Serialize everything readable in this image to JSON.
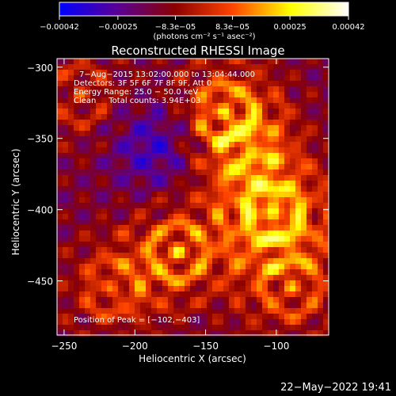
{
  "chart_data": {
    "type": "heatmap",
    "title": "Reconstructed RHESSI Image",
    "xlabel": "Heliocentric X (arcsec)",
    "ylabel": "Heliocentric Y (arcsec)",
    "xlim": [
      -255,
      -63
    ],
    "ylim": [
      -488,
      -294
    ],
    "x_ticks": [
      -250,
      -200,
      -150,
      -100
    ],
    "x_tick_labels": [
      "−250",
      "−200",
      "−150",
      "−100"
    ],
    "y_ticks": [
      -300,
      -350,
      -400,
      -450
    ],
    "y_tick_labels": [
      "−300",
      "−350",
      "−400",
      "−450"
    ],
    "colorbar": {
      "range": [
        -0.00042,
        0.00042
      ],
      "ticks": [
        -0.00042,
        -0.00025,
        -8.3e-05,
        8.3e-05,
        0.00025,
        0.00042
      ],
      "tick_labels": [
        "−0.00042",
        "−0.00025",
        "−8.3e−05",
        "8.3e−05",
        "0.00025",
        "0.00042"
      ],
      "unit_label": "(photons cm⁻² s⁻¹ asec⁻²)",
      "colormap": [
        "#0000ff",
        "#5a0096",
        "#8b0000",
        "#ff4500",
        "#ffff00",
        "#ffffff"
      ]
    },
    "annotations": [
      "7−Aug−2015 13:02:00.000 to 13:04:44.000",
      "Detectors: 3F 5F 6F 7F 8F 9F, Att 0",
      "Energy Range: 25.0 − 50.0 keV",
      "Clean     Total counts: 3.94E+03"
    ],
    "peak_label": "Position of Peak = [−102,−403]",
    "peak": [
      -102,
      -403
    ],
    "timestamp": "22−May−2022 19:41"
  }
}
